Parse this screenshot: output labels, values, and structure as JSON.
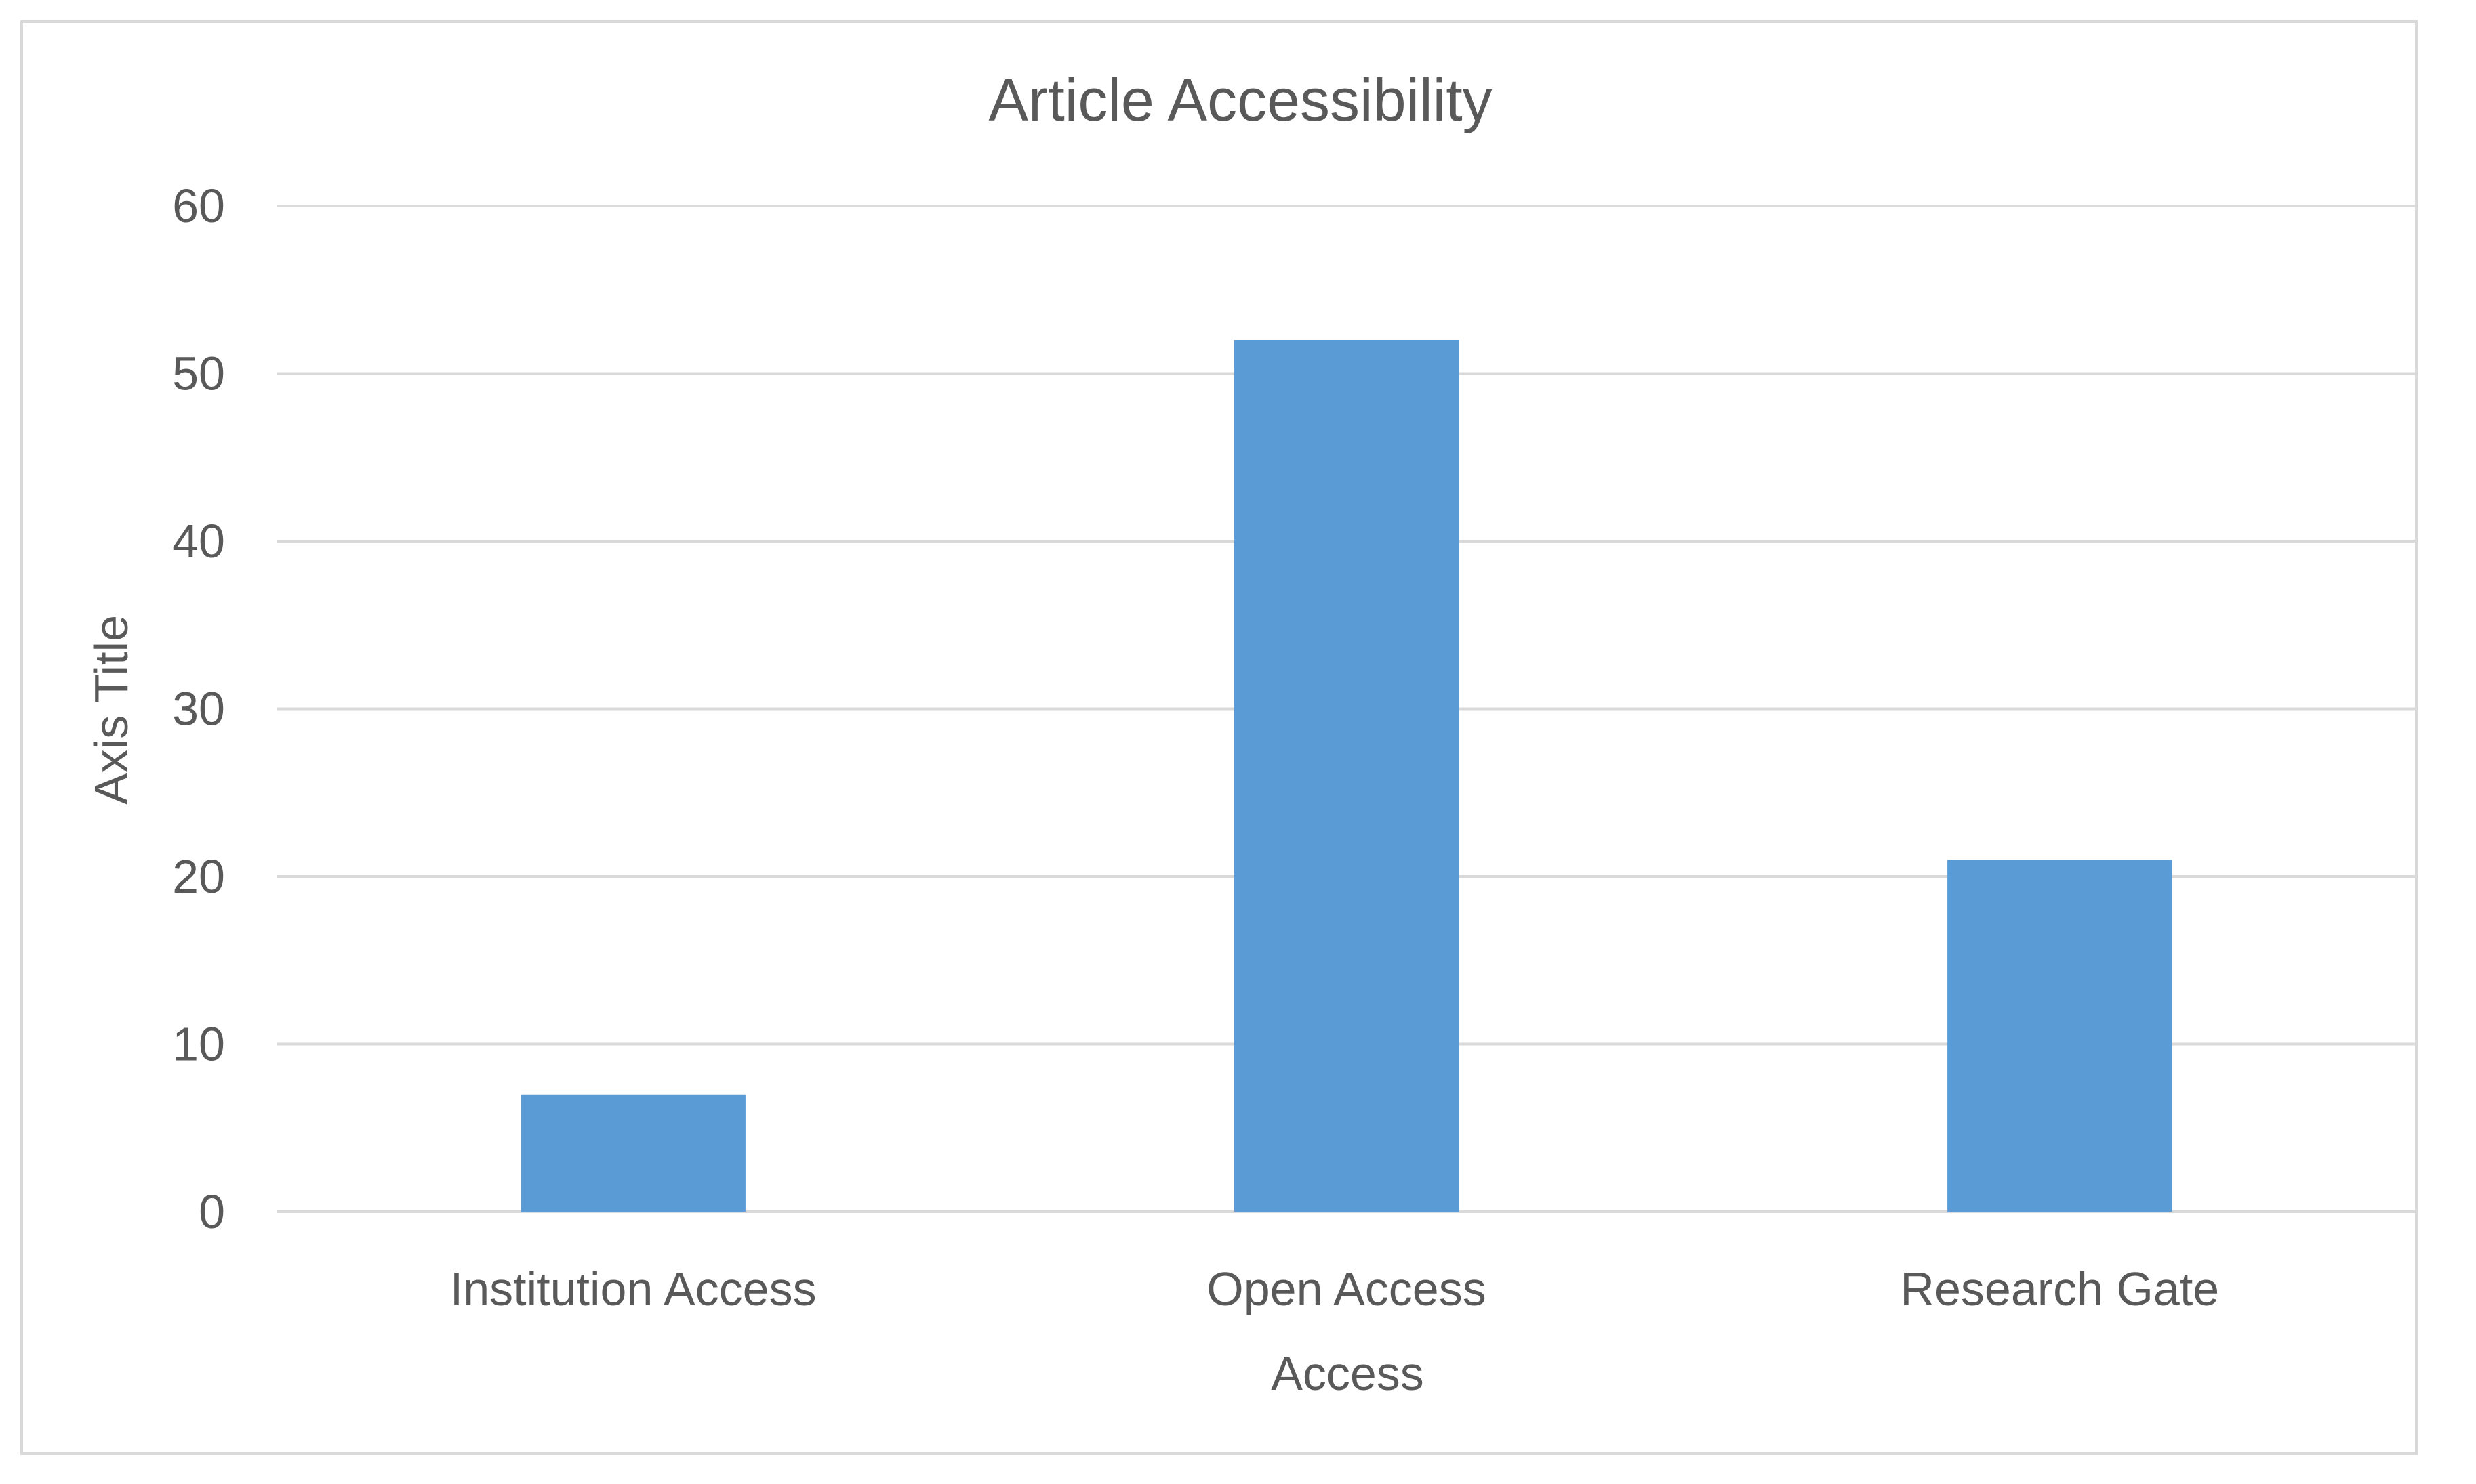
{
  "chart_data": {
    "type": "bar",
    "title": "Article Accessibility",
    "xlabel": "Access",
    "ylabel": "Axis Title",
    "categories": [
      "Institution Access",
      "Open Access",
      "Research Gate"
    ],
    "values": [
      7,
      52,
      21
    ],
    "ylim": [
      0,
      60
    ],
    "yticks": [
      "0",
      "10",
      "20",
      "30",
      "40",
      "50",
      "60"
    ],
    "grid": true,
    "legend": "none",
    "bar_color": "#5b9bd5",
    "grid_color": "#d9d9d9",
    "text_color": "#595959"
  }
}
